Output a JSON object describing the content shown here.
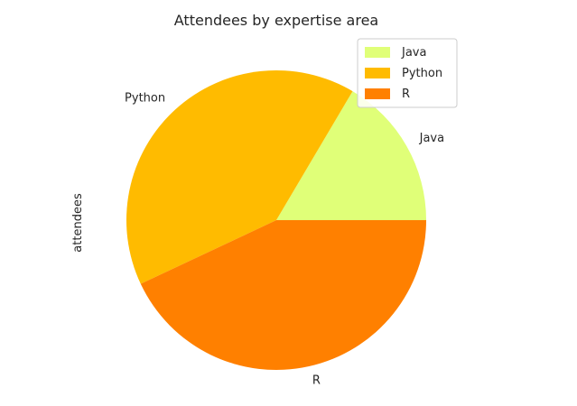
{
  "chart_data": {
    "type": "pie",
    "title": "Attendees by expertise area",
    "ylabel": "attendees",
    "xlabel": "",
    "categories": [
      "Java",
      "Python",
      "R"
    ],
    "values": [
      16.5,
      40.5,
      43.0
    ],
    "colors": [
      "#e0ff78",
      "#ffbb00",
      "#ff8000"
    ],
    "start_angle": 0,
    "direction": "counterclockwise",
    "legend": {
      "placement": "top-right",
      "entries": [
        "Java",
        "Python",
        "R"
      ]
    }
  }
}
